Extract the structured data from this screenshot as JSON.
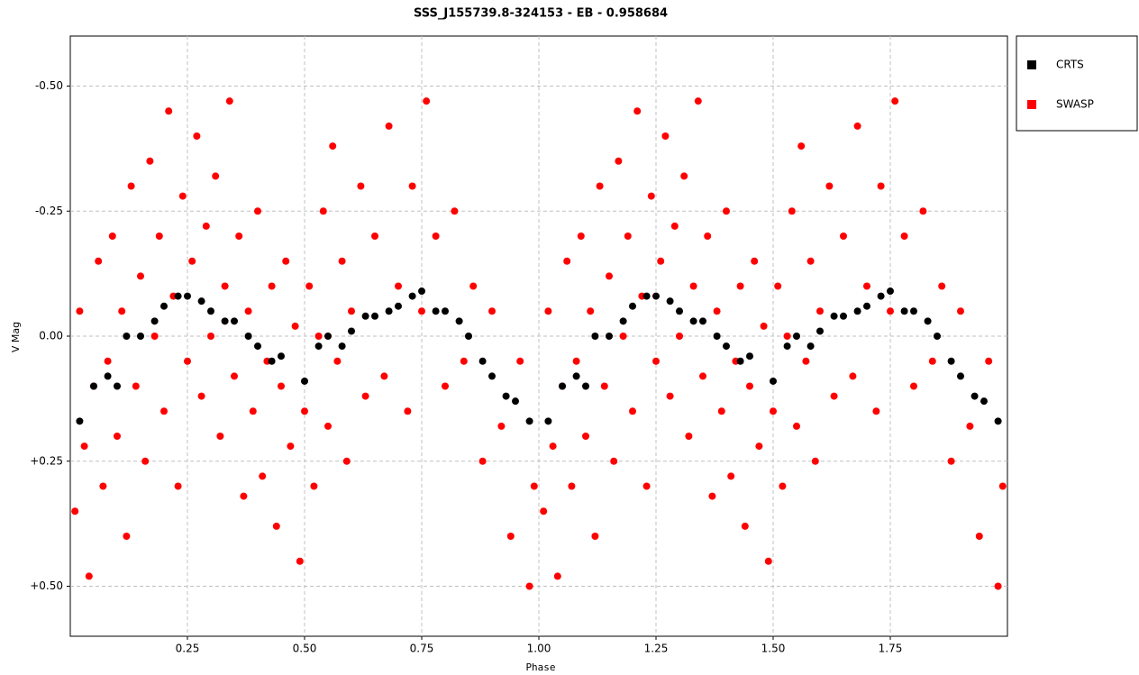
{
  "chart_data": {
    "type": "scatter",
    "title": "SSS_J155739.8-324153  -  EB  -  0.958684",
    "x_label": "Phase",
    "y_label": "V Mag",
    "xlim": [
      0,
      2
    ],
    "ylim": [
      -0.6,
      0.6
    ],
    "y_inverted": true,
    "grid": true,
    "legend_position": "outside-right",
    "xticks": [
      0.25,
      {
        "value": 0.5,
        "label": "0.50"
      },
      0.75,
      {
        "value": 1,
        "label": "1.00"
      },
      1.25,
      {
        "value": 1.5,
        "label": "1.50"
      },
      1.75
    ],
    "yticks": [
      {
        "value": -0.5,
        "label": "-0.50"
      },
      {
        "value": -0.25,
        "label": "-0.25"
      },
      {
        "value": 0,
        "label": "0.00"
      },
      {
        "value": 0.25,
        "label": "+0.25"
      },
      {
        "value": 0.5,
        "label": "+0.50"
      }
    ],
    "series": [
      {
        "name": "SWASP",
        "color": "#ff0000",
        "x": [
          0.01,
          0.02,
          0.03,
          0.04,
          0.05,
          0.06,
          0.07,
          0.08,
          0.09,
          0.1,
          0.11,
          0.12,
          0.13,
          0.14,
          0.15,
          0.16,
          0.17,
          0.18,
          0.19,
          0.2,
          0.21,
          0.22,
          0.23,
          0.24,
          0.25,
          0.26,
          0.27,
          0.28,
          0.29,
          0.3,
          0.31,
          0.32,
          0.33,
          0.34,
          0.35,
          0.36,
          0.37,
          0.38,
          0.39,
          0.4,
          0.41,
          0.42,
          0.43,
          0.44,
          0.45,
          0.46,
          0.47,
          0.48,
          0.49,
          0.5,
          0.51,
          0.52,
          0.53,
          0.54,
          0.55,
          0.56,
          0.57,
          0.58,
          0.59,
          0.6,
          0.62,
          0.63,
          0.65,
          0.67,
          0.68,
          0.7,
          0.72,
          0.73,
          0.75,
          0.76,
          0.78,
          0.8,
          0.82,
          0.84,
          0.86,
          0.88,
          0.9,
          0.92,
          0.94,
          0.96,
          0.98,
          0.99,
          1.01,
          1.02,
          1.03,
          1.04,
          1.05,
          1.06,
          1.07,
          1.08,
          1.09,
          1.1,
          1.11,
          1.12,
          1.13,
          1.14,
          1.15,
          1.16,
          1.17,
          1.18,
          1.19,
          1.2,
          1.21,
          1.22,
          1.23,
          1.24,
          1.25,
          1.26,
          1.27,
          1.28,
          1.29,
          1.3,
          1.31,
          1.32,
          1.33,
          1.34,
          1.35,
          1.36,
          1.37,
          1.38,
          1.39,
          1.4,
          1.41,
          1.42,
          1.43,
          1.44,
          1.45,
          1.46,
          1.47,
          1.48,
          1.49,
          1.5,
          1.51,
          1.52,
          1.53,
          1.54,
          1.55,
          1.56,
          1.57,
          1.58,
          1.59,
          1.6,
          1.62,
          1.63,
          1.65,
          1.67,
          1.68,
          1.7,
          1.72,
          1.73,
          1.75,
          1.76,
          1.78,
          1.8,
          1.82,
          1.84,
          1.86,
          1.88,
          1.9,
          1.92,
          1.94,
          1.96,
          1.98,
          1.99
        ],
        "values": [
          0.35,
          -0.05,
          0.22,
          0.48,
          0.1,
          -0.15,
          0.3,
          0.05,
          -0.2,
          0.2,
          -0.05,
          0.4,
          -0.3,
          0.1,
          -0.12,
          0.25,
          -0.35,
          0.0,
          -0.2,
          0.15,
          -0.45,
          -0.08,
          0.3,
          -0.28,
          0.05,
          -0.15,
          -0.4,
          0.12,
          -0.22,
          0.0,
          -0.32,
          0.2,
          -0.1,
          -0.47,
          0.08,
          -0.2,
          0.32,
          -0.05,
          0.15,
          -0.25,
          0.28,
          0.05,
          -0.1,
          0.38,
          0.1,
          -0.15,
          0.22,
          -0.02,
          0.45,
          0.15,
          -0.1,
          0.3,
          0.0,
          -0.25,
          0.18,
          -0.38,
          0.05,
          -0.15,
          0.25,
          -0.05,
          -0.3,
          0.12,
          -0.2,
          0.08,
          -0.42,
          -0.1,
          0.15,
          -0.3,
          -0.05,
          -0.47,
          -0.2,
          0.1,
          -0.25,
          0.05,
          -0.1,
          0.25,
          -0.05,
          0.18,
          0.4,
          0.05,
          0.5,
          0.3,
          0.35,
          -0.05,
          0.22,
          0.48,
          0.1,
          -0.15,
          0.3,
          0.05,
          -0.2,
          0.2,
          -0.05,
          0.4,
          -0.3,
          0.1,
          -0.12,
          0.25,
          -0.35,
          0.0,
          -0.2,
          0.15,
          -0.45,
          -0.08,
          0.3,
          -0.28,
          0.05,
          -0.15,
          -0.4,
          0.12,
          -0.22,
          0.0,
          -0.32,
          0.2,
          -0.1,
          -0.47,
          0.08,
          -0.2,
          0.32,
          -0.05,
          0.15,
          -0.25,
          0.28,
          0.05,
          -0.1,
          0.38,
          0.1,
          -0.15,
          0.22,
          -0.02,
          0.45,
          0.15,
          -0.1,
          0.3,
          0.0,
          -0.25,
          0.18,
          -0.38,
          0.05,
          -0.15,
          0.25,
          -0.05,
          -0.3,
          0.12,
          -0.2,
          0.08,
          -0.42,
          -0.1,
          0.15,
          -0.3,
          -0.05,
          -0.47,
          -0.2,
          0.1,
          -0.25,
          0.05,
          -0.1,
          0.25,
          -0.05,
          0.18,
          0.4,
          0.05,
          0.5,
          0.3
        ]
      },
      {
        "name": "CRTS",
        "color": "#000000",
        "x": [
          0.02,
          0.05,
          0.08,
          0.1,
          0.12,
          0.15,
          0.18,
          0.2,
          0.23,
          0.25,
          0.28,
          0.3,
          0.33,
          0.35,
          0.38,
          0.4,
          0.43,
          0.45,
          0.5,
          0.53,
          0.55,
          0.58,
          0.6,
          0.63,
          0.65,
          0.68,
          0.7,
          0.73,
          0.75,
          0.78,
          0.8,
          0.83,
          0.85,
          0.88,
          0.9,
          0.93,
          0.95,
          0.98,
          1.02,
          1.05,
          1.08,
          1.1,
          1.12,
          1.15,
          1.18,
          1.2,
          1.23,
          1.25,
          1.28,
          1.3,
          1.33,
          1.35,
          1.38,
          1.4,
          1.43,
          1.45,
          1.5,
          1.53,
          1.55,
          1.58,
          1.6,
          1.63,
          1.65,
          1.68,
          1.7,
          1.73,
          1.75,
          1.78,
          1.8,
          1.83,
          1.85,
          1.88,
          1.9,
          1.93,
          1.95,
          1.98
        ],
        "values": [
          0.17,
          0.1,
          0.08,
          0.1,
          0.0,
          0.0,
          -0.03,
          -0.06,
          -0.08,
          -0.08,
          -0.07,
          -0.05,
          -0.03,
          -0.03,
          0.0,
          0.02,
          0.05,
          0.04,
          0.09,
          0.02,
          0.0,
          0.02,
          -0.01,
          -0.04,
          -0.04,
          -0.05,
          -0.06,
          -0.08,
          -0.09,
          -0.05,
          -0.05,
          -0.03,
          0.0,
          0.05,
          0.08,
          0.12,
          0.13,
          0.17,
          0.17,
          0.1,
          0.08,
          0.1,
          0.0,
          0.0,
          -0.03,
          -0.06,
          -0.08,
          -0.08,
          -0.07,
          -0.05,
          -0.03,
          -0.03,
          0.0,
          0.02,
          0.05,
          0.04,
          0.09,
          0.02,
          0.0,
          0.02,
          -0.01,
          -0.04,
          -0.04,
          -0.05,
          -0.06,
          -0.08,
          -0.09,
          -0.05,
          -0.05,
          -0.03,
          0.0,
          0.05,
          0.08,
          0.12,
          0.13,
          0.17
        ]
      }
    ]
  }
}
